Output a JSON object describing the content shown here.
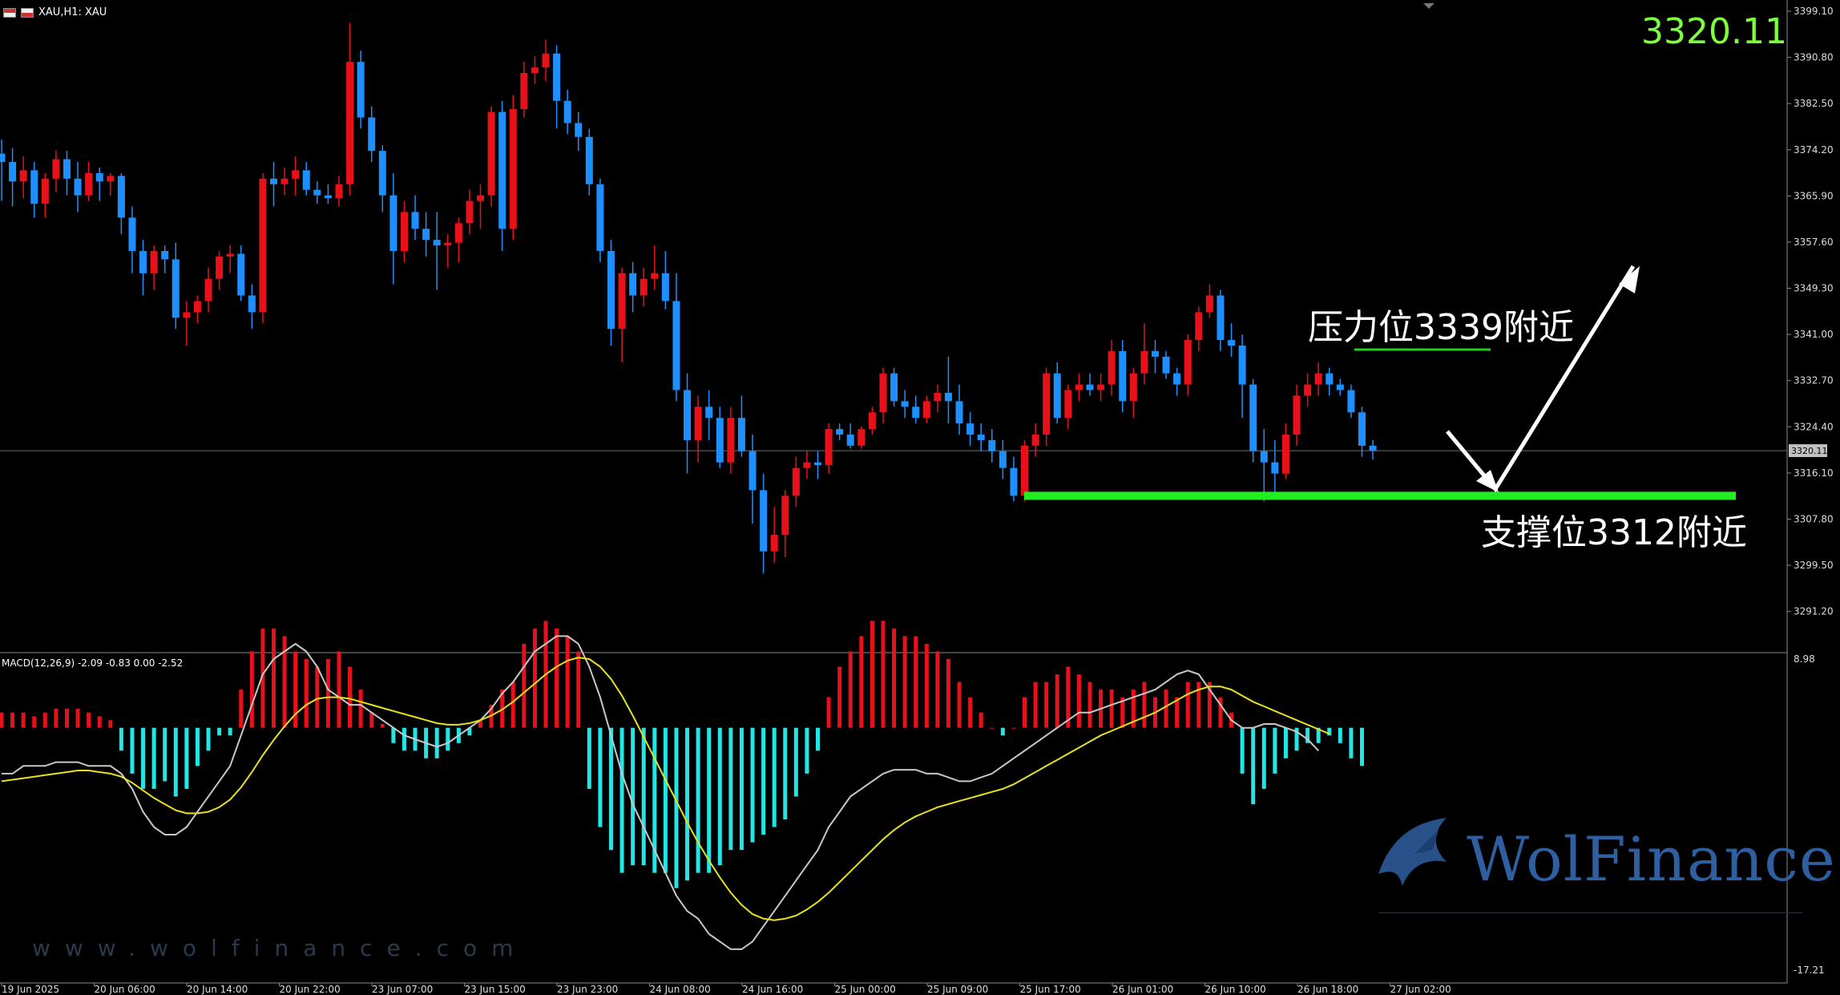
{
  "header": {
    "title": "XAU,H1: XAU"
  },
  "current_price": "3320.11",
  "macd_label": "MACD(12,26,9) -2.09 -0.83 0.00 -2.52",
  "annotations": {
    "resistance": "压力位3339附近",
    "support": "支撑位3312附近"
  },
  "watermark": {
    "name": "WolFinance",
    "url": "www.wolfinance.com",
    "logo_icon": "wolf-logo-icon"
  },
  "colors": {
    "bull": "#e8111a",
    "bear": "#1e8fff",
    "support": "#22ee22",
    "resistance": "#22cc22",
    "hist_pos": "#e8111a",
    "hist_neg": "#22e5e5",
    "signal": "#e8e020",
    "macd_line": "#c8c8c8"
  },
  "chart_data": {
    "type": "candlestick",
    "symbol": "XAU",
    "timeframe": "H1",
    "ylim": [
      3283.8,
      3399.1
    ],
    "price_ticks": [
      "3399.10",
      "3390.80",
      "3382.50",
      "3374.20",
      "3365.90",
      "3357.60",
      "3349.30",
      "3341.00",
      "3332.70",
      "3324.40",
      "3316.10",
      "3307.80",
      "3299.50",
      "3291.20"
    ],
    "current_price_tag": "3320.11",
    "macd_ticks": [
      "8.98",
      "-17.21"
    ],
    "time_labels": [
      "19 Jun 2025",
      "20 Jun 06:00",
      "20 Jun 14:00",
      "20 Jun 22:00",
      "23 Jun 07:00",
      "23 Jun 15:00",
      "23 Jun 23:00",
      "24 Jun 08:00",
      "24 Jun 16:00",
      "25 Jun 00:00",
      "25 Jun 09:00",
      "25 Jun 17:00",
      "26 Jun 01:00",
      "26 Jun 10:00",
      "26 Jun 18:00",
      "27 Jun 02:00"
    ],
    "resistance_level": 3339,
    "support_level": 3312,
    "candles": [
      {
        "o": 3373.5,
        "h": 3376.0,
        "l": 3365.0,
        "c": 3372.0
      },
      {
        "o": 3372.0,
        "h": 3374.5,
        "l": 3364.0,
        "c": 3368.5
      },
      {
        "o": 3368.5,
        "h": 3373.0,
        "l": 3365.5,
        "c": 3370.5
      },
      {
        "o": 3370.5,
        "h": 3372.0,
        "l": 3362.0,
        "c": 3364.5
      },
      {
        "o": 3364.5,
        "h": 3370.0,
        "l": 3362.0,
        "c": 3369.0
      },
      {
        "o": 3369.0,
        "h": 3374.0,
        "l": 3366.5,
        "c": 3372.5
      },
      {
        "o": 3372.5,
        "h": 3374.0,
        "l": 3366.0,
        "c": 3369.0
      },
      {
        "o": 3369.0,
        "h": 3372.0,
        "l": 3363.0,
        "c": 3366.0
      },
      {
        "o": 3366.0,
        "h": 3372.0,
        "l": 3365.0,
        "c": 3370.0
      },
      {
        "o": 3370.0,
        "h": 3371.0,
        "l": 3365.0,
        "c": 3368.5
      },
      {
        "o": 3368.5,
        "h": 3370.0,
        "l": 3366.0,
        "c": 3369.5
      },
      {
        "o": 3369.5,
        "h": 3370.0,
        "l": 3359.0,
        "c": 3362.0
      },
      {
        "o": 3362.0,
        "h": 3364.0,
        "l": 3352.0,
        "c": 3356.0
      },
      {
        "o": 3356.0,
        "h": 3358.0,
        "l": 3348.0,
        "c": 3352.0
      },
      {
        "o": 3352.0,
        "h": 3357.0,
        "l": 3349.0,
        "c": 3356.0
      },
      {
        "o": 3356.0,
        "h": 3357.0,
        "l": 3352.0,
        "c": 3354.5
      },
      {
        "o": 3354.5,
        "h": 3357.5,
        "l": 3342.0,
        "c": 3344.0
      },
      {
        "o": 3344.0,
        "h": 3347.0,
        "l": 3339.0,
        "c": 3345.0
      },
      {
        "o": 3345.0,
        "h": 3348.0,
        "l": 3343.0,
        "c": 3347.0
      },
      {
        "o": 3347.0,
        "h": 3353.0,
        "l": 3345.0,
        "c": 3351.0
      },
      {
        "o": 3351.0,
        "h": 3356.0,
        "l": 3349.0,
        "c": 3355.0
      },
      {
        "o": 3355.0,
        "h": 3357.0,
        "l": 3352.0,
        "c": 3355.5
      },
      {
        "o": 3355.5,
        "h": 3357.0,
        "l": 3347.0,
        "c": 3348.0
      },
      {
        "o": 3348.0,
        "h": 3350.0,
        "l": 3342.0,
        "c": 3345.0
      },
      {
        "o": 3345.0,
        "h": 3370.0,
        "l": 3343.0,
        "c": 3369.0
      },
      {
        "o": 3369.0,
        "h": 3372.0,
        "l": 3364.0,
        "c": 3368.0
      },
      {
        "o": 3368.0,
        "h": 3371.0,
        "l": 3366.0,
        "c": 3369.0
      },
      {
        "o": 3369.0,
        "h": 3373.0,
        "l": 3366.0,
        "c": 3370.5
      },
      {
        "o": 3370.5,
        "h": 3372.0,
        "l": 3366.0,
        "c": 3367.0
      },
      {
        "o": 3367.0,
        "h": 3368.5,
        "l": 3364.5,
        "c": 3366.0
      },
      {
        "o": 3366.0,
        "h": 3368.0,
        "l": 3364.5,
        "c": 3365.5
      },
      {
        "o": 3365.5,
        "h": 3369.5,
        "l": 3364.0,
        "c": 3368.0
      },
      {
        "o": 3368.0,
        "h": 3397.0,
        "l": 3366.0,
        "c": 3390.0
      },
      {
        "o": 3390.0,
        "h": 3392.0,
        "l": 3378.0,
        "c": 3380.0
      },
      {
        "o": 3380.0,
        "h": 3382.0,
        "l": 3372.0,
        "c": 3374.0
      },
      {
        "o": 3374.0,
        "h": 3375.0,
        "l": 3363.0,
        "c": 3366.0
      },
      {
        "o": 3366.0,
        "h": 3370.0,
        "l": 3350.0,
        "c": 3356.0
      },
      {
        "o": 3356.0,
        "h": 3365.0,
        "l": 3354.0,
        "c": 3363.0
      },
      {
        "o": 3363.0,
        "h": 3366.0,
        "l": 3358.0,
        "c": 3360.0
      },
      {
        "o": 3360.0,
        "h": 3363.0,
        "l": 3355.0,
        "c": 3358.0
      },
      {
        "o": 3358.0,
        "h": 3363.0,
        "l": 3349.0,
        "c": 3357.0
      },
      {
        "o": 3357.0,
        "h": 3359.0,
        "l": 3353.0,
        "c": 3357.5
      },
      {
        "o": 3357.5,
        "h": 3362.0,
        "l": 3354.0,
        "c": 3361.0
      },
      {
        "o": 3361.0,
        "h": 3367.0,
        "l": 3359.0,
        "c": 3365.0
      },
      {
        "o": 3365.0,
        "h": 3368.0,
        "l": 3360.0,
        "c": 3366.0
      },
      {
        "o": 3366.0,
        "h": 3382.0,
        "l": 3364.0,
        "c": 3381.0
      },
      {
        "o": 3381.0,
        "h": 3383.0,
        "l": 3356.0,
        "c": 3360.0
      },
      {
        "o": 3360.0,
        "h": 3384.0,
        "l": 3358.0,
        "c": 3381.5
      },
      {
        "o": 3381.5,
        "h": 3390.0,
        "l": 3380.0,
        "c": 3388.0
      },
      {
        "o": 3388.0,
        "h": 3391.0,
        "l": 3386.0,
        "c": 3389.0
      },
      {
        "o": 3389.0,
        "h": 3394.0,
        "l": 3386.5,
        "c": 3391.5
      },
      {
        "o": 3391.5,
        "h": 3393.0,
        "l": 3378.0,
        "c": 3383.0
      },
      {
        "o": 3383.0,
        "h": 3385.0,
        "l": 3377.0,
        "c": 3379.0
      },
      {
        "o": 3379.0,
        "h": 3381.0,
        "l": 3374.0,
        "c": 3376.5
      },
      {
        "o": 3376.5,
        "h": 3378.0,
        "l": 3366.0,
        "c": 3368.0
      },
      {
        "o": 3368.0,
        "h": 3369.0,
        "l": 3354.0,
        "c": 3356.0
      },
      {
        "o": 3356.0,
        "h": 3358.0,
        "l": 3339.0,
        "c": 3342.0
      },
      {
        "o": 3342.0,
        "h": 3353.0,
        "l": 3336.0,
        "c": 3352.0
      },
      {
        "o": 3352.0,
        "h": 3354.0,
        "l": 3345.0,
        "c": 3348.0
      },
      {
        "o": 3348.0,
        "h": 3353.0,
        "l": 3346.0,
        "c": 3351.0
      },
      {
        "o": 3351.0,
        "h": 3357.0,
        "l": 3349.0,
        "c": 3352.0
      },
      {
        "o": 3352.0,
        "h": 3356.0,
        "l": 3345.5,
        "c": 3347.0
      },
      {
        "o": 3347.0,
        "h": 3352.0,
        "l": 3329.0,
        "c": 3331.0
      },
      {
        "o": 3331.0,
        "h": 3334.0,
        "l": 3316.0,
        "c": 3322.0
      },
      {
        "o": 3322.0,
        "h": 3330.0,
        "l": 3318.0,
        "c": 3328.0
      },
      {
        "o": 3328.0,
        "h": 3331.0,
        "l": 3322.0,
        "c": 3326.0
      },
      {
        "o": 3326.0,
        "h": 3328.0,
        "l": 3317.0,
        "c": 3318.0
      },
      {
        "o": 3318.0,
        "h": 3328.0,
        "l": 3316.0,
        "c": 3326.0
      },
      {
        "o": 3326.0,
        "h": 3330.0,
        "l": 3319.0,
        "c": 3320.0
      },
      {
        "o": 3320.0,
        "h": 3323.0,
        "l": 3307.0,
        "c": 3313.0
      },
      {
        "o": 3313.0,
        "h": 3316.0,
        "l": 3298.0,
        "c": 3302.0
      },
      {
        "o": 3302.0,
        "h": 3310.0,
        "l": 3300.0,
        "c": 3305.0
      },
      {
        "o": 3305.0,
        "h": 3313.0,
        "l": 3301.0,
        "c": 3312.0
      },
      {
        "o": 3312.0,
        "h": 3319.0,
        "l": 3310.0,
        "c": 3317.0
      },
      {
        "o": 3317.0,
        "h": 3320.0,
        "l": 3315.0,
        "c": 3318.0
      },
      {
        "o": 3318.0,
        "h": 3320.0,
        "l": 3315.0,
        "c": 3317.5
      },
      {
        "o": 3317.5,
        "h": 3325.0,
        "l": 3316.0,
        "c": 3324.0
      },
      {
        "o": 3324.0,
        "h": 3325.0,
        "l": 3322.0,
        "c": 3323.0
      },
      {
        "o": 3323.0,
        "h": 3325.0,
        "l": 3320.5,
        "c": 3321.0
      },
      {
        "o": 3321.0,
        "h": 3324.5,
        "l": 3320.5,
        "c": 3324.0
      },
      {
        "o": 3324.0,
        "h": 3328.0,
        "l": 3323.0,
        "c": 3327.0
      },
      {
        "o": 3327.0,
        "h": 3335.0,
        "l": 3325.0,
        "c": 3334.0
      },
      {
        "o": 3334.0,
        "h": 3335.0,
        "l": 3328.0,
        "c": 3329.0
      },
      {
        "o": 3329.0,
        "h": 3331.0,
        "l": 3326.0,
        "c": 3328.0
      },
      {
        "o": 3328.0,
        "h": 3330.0,
        "l": 3325.0,
        "c": 3326.0
      },
      {
        "o": 3326.0,
        "h": 3330.0,
        "l": 3325.0,
        "c": 3329.0
      },
      {
        "o": 3329.0,
        "h": 3332.0,
        "l": 3327.0,
        "c": 3330.5
      },
      {
        "o": 3330.5,
        "h": 3337.0,
        "l": 3325.0,
        "c": 3329.0
      },
      {
        "o": 3329.0,
        "h": 3332.0,
        "l": 3323.0,
        "c": 3325.0
      },
      {
        "o": 3325.0,
        "h": 3327.0,
        "l": 3321.0,
        "c": 3323.0
      },
      {
        "o": 3323.0,
        "h": 3325.0,
        "l": 3320.0,
        "c": 3322.0
      },
      {
        "o": 3322.0,
        "h": 3324.0,
        "l": 3318.0,
        "c": 3320.0
      },
      {
        "o": 3320.0,
        "h": 3322.0,
        "l": 3315.0,
        "c": 3317.0
      },
      {
        "o": 3317.0,
        "h": 3319.0,
        "l": 3311.0,
        "c": 3312.0
      },
      {
        "o": 3312.0,
        "h": 3322.0,
        "l": 3311.0,
        "c": 3321.0
      },
      {
        "o": 3321.0,
        "h": 3325.0,
        "l": 3319.0,
        "c": 3323.0
      },
      {
        "o": 3323.0,
        "h": 3335.0,
        "l": 3321.0,
        "c": 3334.0
      },
      {
        "o": 3334.0,
        "h": 3336.0,
        "l": 3325.0,
        "c": 3326.0
      },
      {
        "o": 3326.0,
        "h": 3332.0,
        "l": 3324.0,
        "c": 3331.0
      },
      {
        "o": 3331.0,
        "h": 3334.0,
        "l": 3329.0,
        "c": 3332.0
      },
      {
        "o": 3332.0,
        "h": 3334.0,
        "l": 3330.0,
        "c": 3331.0
      },
      {
        "o": 3331.0,
        "h": 3334.0,
        "l": 3329.0,
        "c": 3332.0
      },
      {
        "o": 3332.0,
        "h": 3340.0,
        "l": 3330.0,
        "c": 3338.0
      },
      {
        "o": 3338.0,
        "h": 3340.0,
        "l": 3327.0,
        "c": 3329.0
      },
      {
        "o": 3329.0,
        "h": 3335.0,
        "l": 3326.0,
        "c": 3334.0
      },
      {
        "o": 3334.0,
        "h": 3343.0,
        "l": 3332.0,
        "c": 3338.0
      },
      {
        "o": 3338.0,
        "h": 3340.0,
        "l": 3334.0,
        "c": 3337.0
      },
      {
        "o": 3337.0,
        "h": 3338.0,
        "l": 3333.0,
        "c": 3334.0
      },
      {
        "o": 3334.0,
        "h": 3335.0,
        "l": 3330.0,
        "c": 3332.0
      },
      {
        "o": 3332.0,
        "h": 3341.0,
        "l": 3330.0,
        "c": 3340.0
      },
      {
        "o": 3340.0,
        "h": 3346.0,
        "l": 3338.0,
        "c": 3345.0
      },
      {
        "o": 3345.0,
        "h": 3350.0,
        "l": 3344.0,
        "c": 3348.0
      },
      {
        "o": 3348.0,
        "h": 3349.0,
        "l": 3338.0,
        "c": 3340.0
      },
      {
        "o": 3340.0,
        "h": 3343.0,
        "l": 3337.0,
        "c": 3339.0
      },
      {
        "o": 3339.0,
        "h": 3341.0,
        "l": 3326.0,
        "c": 3332.0
      },
      {
        "o": 3332.0,
        "h": 3333.0,
        "l": 3318.0,
        "c": 3320.0
      },
      {
        "o": 3320.0,
        "h": 3324.0,
        "l": 3311.0,
        "c": 3318.0
      },
      {
        "o": 3318.0,
        "h": 3322.0,
        "l": 3312.0,
        "c": 3316.0
      },
      {
        "o": 3316.0,
        "h": 3325.0,
        "l": 3315.0,
        "c": 3323.0
      },
      {
        "o": 3323.0,
        "h": 3332.0,
        "l": 3321.0,
        "c": 3330.0
      },
      {
        "o": 3330.0,
        "h": 3334.0,
        "l": 3328.0,
        "c": 3332.0
      },
      {
        "o": 3332.0,
        "h": 3336.0,
        "l": 3330.0,
        "c": 3334.0
      },
      {
        "o": 3334.0,
        "h": 3335.0,
        "l": 3330.0,
        "c": 3332.0
      },
      {
        "o": 3332.0,
        "h": 3333.0,
        "l": 3330.0,
        "c": 3331.0
      },
      {
        "o": 3331.0,
        "h": 3332.0,
        "l": 3326.0,
        "c": 3327.0
      },
      {
        "o": 3327.0,
        "h": 3328.0,
        "l": 3319.0,
        "c": 3321.0
      },
      {
        "o": 3321.0,
        "h": 3322.0,
        "l": 3318.5,
        "c": 3320.1
      }
    ],
    "macd_hist": [
      2,
      2,
      2,
      1.5,
      2,
      2.5,
      2.5,
      2.5,
      2,
      1.5,
      1,
      -3,
      -6,
      -8,
      -8,
      -7,
      -9,
      -8,
      -5,
      -3,
      -1,
      -1,
      5,
      10,
      13,
      13,
      12,
      10,
      9,
      8,
      9,
      10,
      8,
      5,
      2,
      0.5,
      -2,
      -3,
      -3,
      -4,
      -4,
      -3,
      -2,
      -1,
      1,
      3,
      5,
      6,
      11,
      13,
      14,
      13,
      12,
      10,
      -8,
      -13,
      -16,
      -19,
      -18,
      -18,
      -19,
      -19,
      -21,
      -20,
      -19,
      -19,
      -18,
      -16,
      -16,
      -15,
      -14,
      -13,
      -12,
      -9,
      -6,
      -3,
      4,
      8,
      10,
      12,
      14,
      14,
      13,
      12,
      12,
      11,
      10,
      9,
      6,
      4,
      2,
      0,
      -1,
      0,
      4,
      6,
      6,
      7,
      8,
      7,
      6,
      5,
      5,
      4,
      5,
      6,
      4,
      5,
      4,
      6,
      6,
      6,
      4,
      2,
      -6,
      -10,
      -8,
      -6,
      -4,
      -3,
      -2,
      -2,
      -1,
      -2,
      -4,
      -5
    ],
    "macd_line": [
      -6,
      -6,
      -5,
      -5,
      -5,
      -4.5,
      -4.5,
      -4.5,
      -5,
      -5,
      -5,
      -6,
      -8,
      -11,
      -13,
      -14,
      -14,
      -13,
      -11,
      -9,
      -7,
      -5,
      -1,
      3,
      7,
      9,
      10,
      11,
      10,
      8,
      5,
      4,
      3,
      3,
      2,
      1,
      0,
      -1,
      -1.5,
      -2,
      -2.5,
      -2,
      -1,
      0,
      1,
      2.5,
      4.5,
      6,
      8,
      10,
      11,
      12,
      12,
      11,
      8,
      4,
      -1,
      -6,
      -10,
      -13,
      -16,
      -19,
      -22,
      -24,
      -25,
      -27,
      -28,
      -29,
      -29,
      -28,
      -26,
      -24,
      -22,
      -20,
      -18,
      -16,
      -13,
      -11,
      -9,
      -8,
      -7,
      -6,
      -5.5,
      -5.5,
      -5.5,
      -6,
      -6,
      -6.5,
      -7,
      -7,
      -6.5,
      -6,
      -5,
      -4,
      -3,
      -2,
      -1,
      0,
      1,
      2,
      2,
      2.5,
      3,
      3.5,
      4,
      4.5,
      5,
      6,
      7,
      7.5,
      7,
      5,
      3,
      1,
      0,
      0,
      0.5,
      0.5,
      0,
      -0.5,
      -1.5,
      -3
    ],
    "signal_line": [
      -7,
      -6.8,
      -6.6,
      -6.4,
      -6.2,
      -6,
      -5.8,
      -5.6,
      -5.6,
      -5.8,
      -6,
      -6.4,
      -7.2,
      -8.2,
      -9.2,
      -10,
      -10.8,
      -11.2,
      -11.2,
      -11,
      -10.4,
      -9.4,
      -7.8,
      -5.8,
      -3.6,
      -1.6,
      0.2,
      1.8,
      3,
      3.8,
      4,
      4,
      3.8,
      3.4,
      3,
      2.6,
      2.2,
      1.8,
      1.4,
      1,
      0.6,
      0.4,
      0.4,
      0.6,
      1,
      1.6,
      2.4,
      3.4,
      4.6,
      5.8,
      7,
      8,
      8.8,
      9.2,
      9,
      8,
      6.4,
      4.2,
      1.6,
      -1.2,
      -4,
      -6.8,
      -9.6,
      -12.4,
      -15,
      -17.4,
      -19.6,
      -21.6,
      -23.2,
      -24.4,
      -25,
      -25.2,
      -25,
      -24.6,
      -23.8,
      -22.8,
      -21.6,
      -20.2,
      -18.8,
      -17.4,
      -16,
      -14.6,
      -13.4,
      -12.4,
      -11.6,
      -11,
      -10.4,
      -10,
      -9.6,
      -9.2,
      -8.8,
      -8.4,
      -8,
      -7.4,
      -6.6,
      -5.8,
      -5,
      -4.2,
      -3.4,
      -2.6,
      -1.8,
      -1,
      -0.4,
      0.2,
      0.8,
      1.4,
      2,
      2.8,
      3.6,
      4.4,
      5,
      5.4,
      5.4,
      5,
      4.2,
      3.4,
      2.8,
      2.2,
      1.6,
      1,
      0.4,
      -0.2,
      -0.8
    ]
  }
}
